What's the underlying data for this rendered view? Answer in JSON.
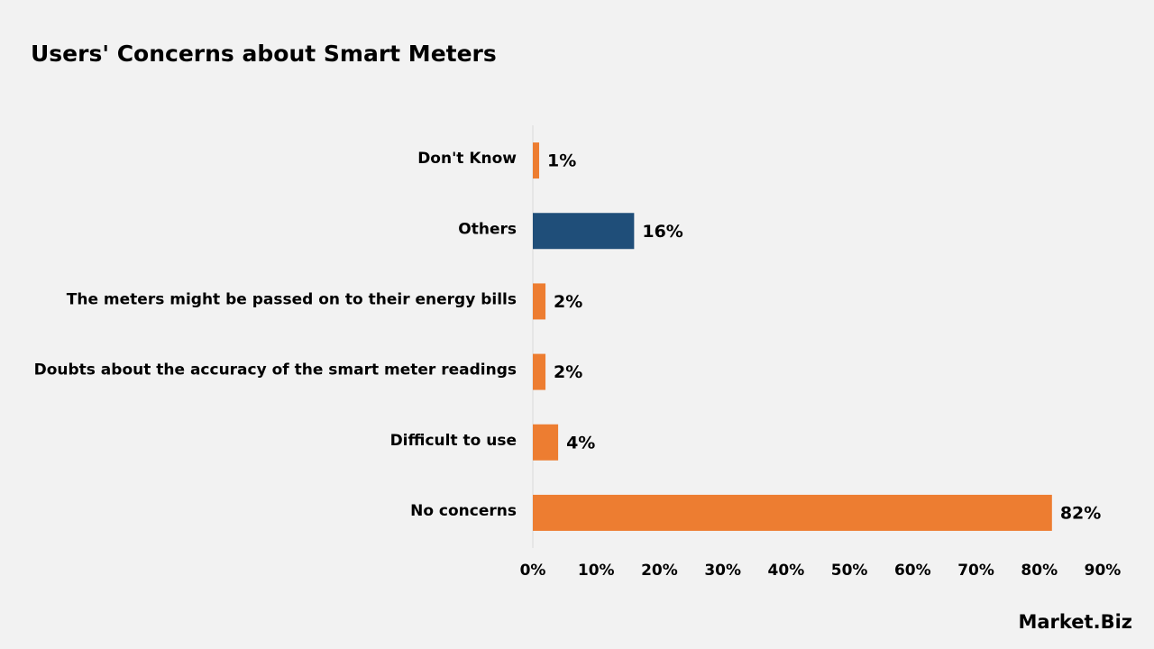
{
  "chart_data": {
    "type": "hbar",
    "title": "Users' Concerns about Smart Meters",
    "categories": [
      "Don't Know",
      "Others",
      "The meters might be passed on to their energy bills",
      "Doubts about the accuracy of the smart meter readings",
      "Difficult to use",
      "No concerns"
    ],
    "values": [
      1,
      16,
      2,
      2,
      4,
      82
    ],
    "value_labels": [
      "1%",
      "16%",
      "2%",
      "2%",
      "4%",
      "82%"
    ],
    "colors": [
      "#ed7d31",
      "#1f4e79",
      "#ed7d31",
      "#ed7d31",
      "#ed7d31",
      "#ed7d31"
    ],
    "xlim": [
      0,
      90
    ],
    "xticks": [
      {
        "value": 0,
        "label": "0%"
      },
      {
        "value": 10,
        "label": "10%"
      },
      {
        "value": 20,
        "label": "20%"
      },
      {
        "value": 30,
        "label": "30%"
      },
      {
        "value": 40,
        "label": "40%"
      },
      {
        "value": 50,
        "label": "50%"
      },
      {
        "value": 60,
        "label": "60%"
      },
      {
        "value": 70,
        "label": "70%"
      },
      {
        "value": 80,
        "label": "80%"
      },
      {
        "value": 90,
        "label": "90%"
      }
    ],
    "grid": false
  },
  "logo": "Market.Biz"
}
